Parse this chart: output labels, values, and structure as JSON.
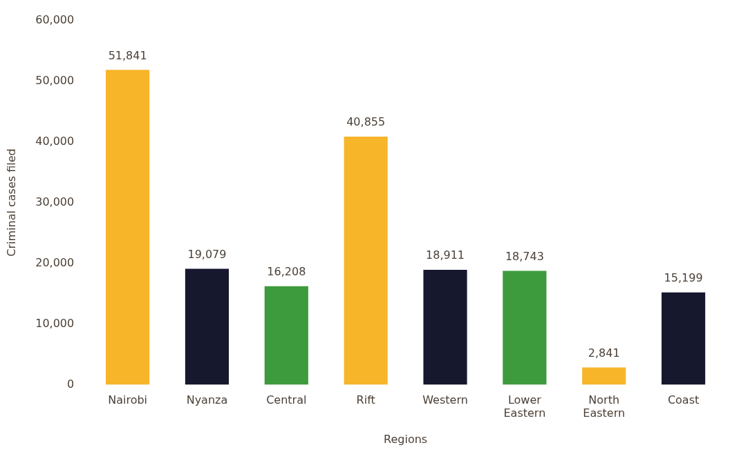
{
  "chart_data": {
    "type": "bar",
    "xlabel": "Regions",
    "ylabel": "Criminal cases filed",
    "categories": [
      "Nairobi",
      "Nyanza",
      "Central",
      "Rift",
      "Western",
      "Lower Eastern",
      "North Eastern",
      "Coast"
    ],
    "values": [
      51841,
      19079,
      16208,
      40855,
      18911,
      18743,
      2841,
      15199
    ],
    "value_labels": [
      "51,841",
      "19,079",
      "16,208",
      "40,855",
      "18,911",
      "18,743",
      "2,841",
      "15,199"
    ],
    "colors": [
      "#f7b52a",
      "#16182e",
      "#3d9b3d",
      "#f7b52a",
      "#16182e",
      "#3d9b3d",
      "#f7b52a",
      "#16182e"
    ],
    "ylim": [
      0,
      60000
    ],
    "yticks": [
      0,
      {
        "value": 10000,
        "label": "10,000"
      },
      {
        "value": 20000,
        "label": "20,000"
      },
      {
        "value": 30000,
        "label": "30,000"
      },
      {
        "value": 40000,
        "label": "40,000"
      },
      {
        "value": 50000,
        "label": "50,000"
      },
      {
        "value": 60000,
        "label": "60,000"
      }
    ],
    "grid": false,
    "legend": false
  }
}
